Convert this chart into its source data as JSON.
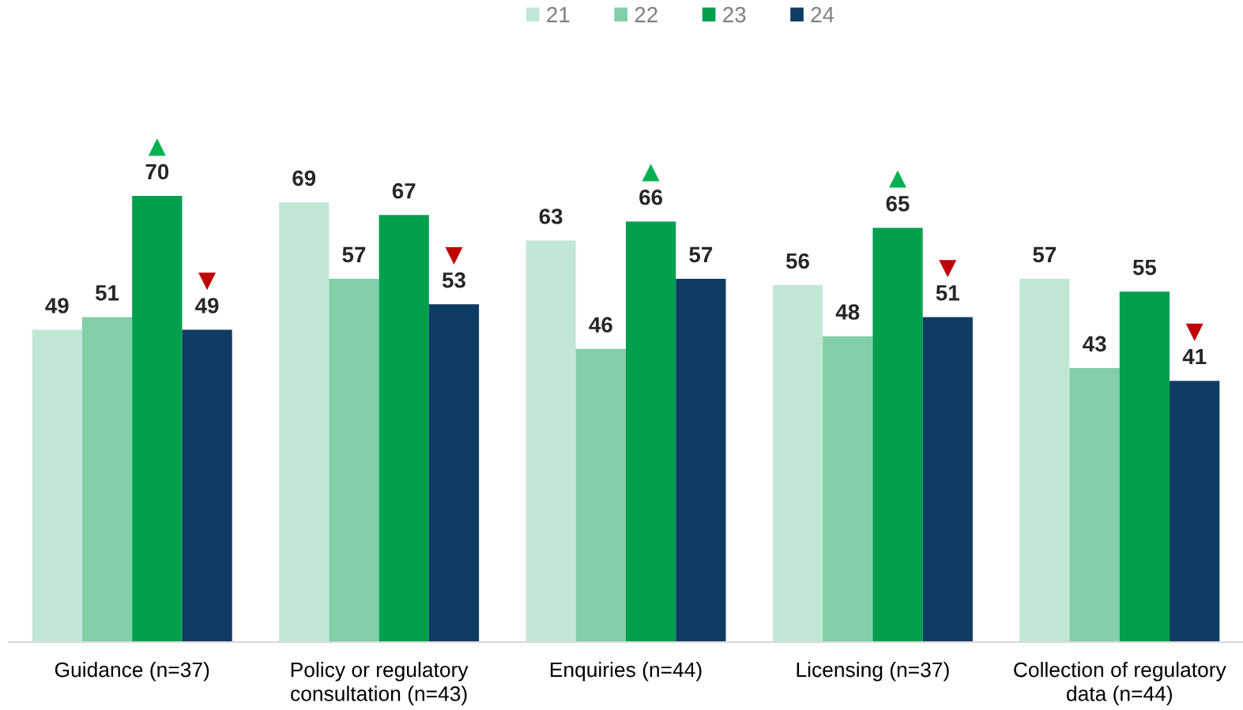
{
  "chart_data": {
    "type": "bar",
    "categories": [
      "Guidance (n=37)",
      "Policy or regulatory consultation (n=43)",
      "Enquiries (n=44)",
      "Licensing (n=37)",
      "Collection of regulatory data (n=44)"
    ],
    "series": [
      {
        "name": "21",
        "color": "#c1e8d5",
        "values": [
          49,
          69,
          63,
          56,
          57
        ]
      },
      {
        "name": "22",
        "color": "#82cfa7",
        "values": [
          51,
          57,
          46,
          48,
          43
        ]
      },
      {
        "name": "23",
        "color": "#009f4d",
        "values": [
          70,
          67,
          66,
          65,
          55
        ]
      },
      {
        "name": "24",
        "color": "#0e3c63",
        "values": [
          49,
          53,
          57,
          51,
          41
        ]
      }
    ],
    "ylim": [
      0,
      100
    ],
    "tick_labels": "x",
    "data_labels": true,
    "legend": "top",
    "annotations": [
      {
        "text": "▲",
        "x": "Guidance (n=37)",
        "y": 70
      },
      {
        "text": "▼",
        "x": "Guidance (n=37)",
        "y": 49
      },
      {
        "text": "▼",
        "x": "Policy or regulatory consultation (n=43)",
        "y": 53
      },
      {
        "text": "▲",
        "x": "Enquiries (n=44)",
        "y": 66
      },
      {
        "text": "▲",
        "x": "Licensing (n=37)",
        "y": 65
      },
      {
        "text": "▼",
        "x": "Licensing (n=37)",
        "y": 51
      },
      {
        "text": "▼",
        "x": "Collection of regulatory data (n=44)",
        "y": 41
      }
    ]
  }
}
